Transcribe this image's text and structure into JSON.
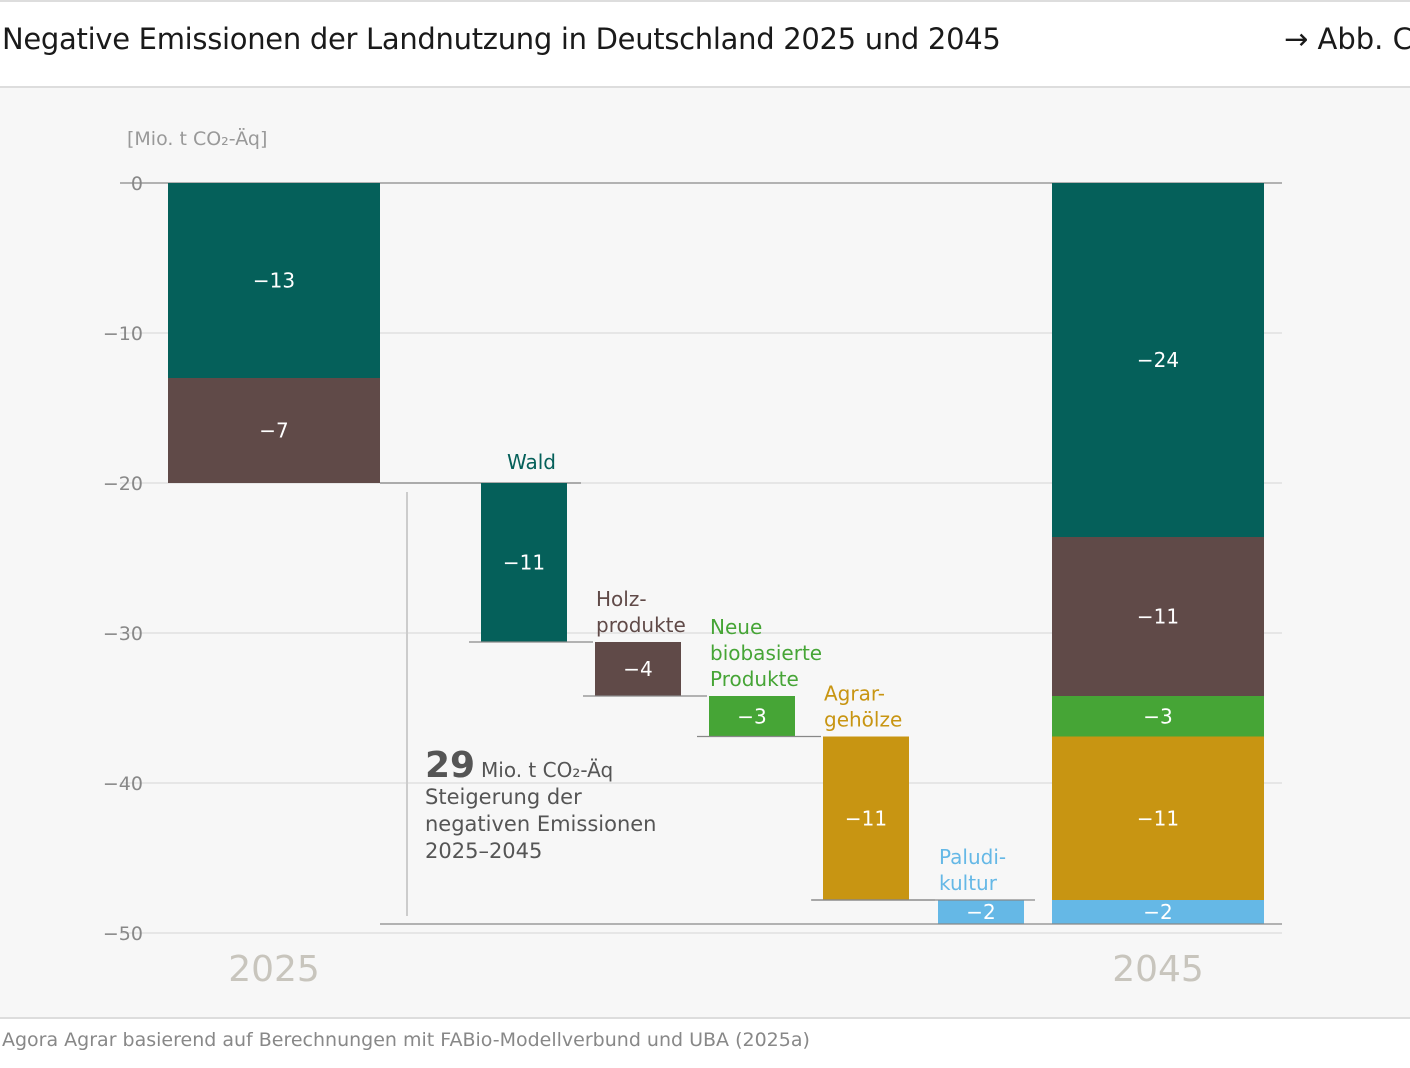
{
  "header": {
    "title": "Negative Emissionen der Landnutzung in Deutschland 2025 und 2045",
    "figure_ref": "→ Abb. C"
  },
  "footer": {
    "source": "Agora Agrar basierend auf Berechnungen mit FABio-Modellverbund und UBA (2025a)"
  },
  "chart_data": {
    "type": "waterfall",
    "ylabel": "[Mio. t CO₂-Äq]",
    "ylim": [
      -50,
      0
    ],
    "yticks": [
      0,
      -10,
      -20,
      -30,
      -40,
      -50
    ],
    "ytick_labels": [
      "0",
      "−10",
      "−20",
      "−30",
      "−40",
      "−50"
    ],
    "grid": true,
    "colors": {
      "Wald": "#05605a",
      "Holzprodukte": "#604a48",
      "Neue biobasierte Produkte": "#46a536",
      "Agrargehölze": "#c89512",
      "Paludikultur": "#65b8e6"
    },
    "totals": [
      {
        "category": "2025",
        "segments": [
          {
            "key": "Wald",
            "value": -13,
            "label": "−13"
          },
          {
            "key": "Holzprodukte",
            "value": -7,
            "label": "−7"
          }
        ]
      },
      {
        "category": "2045",
        "segments": [
          {
            "key": "Wald",
            "value": -23.6,
            "label": "−24"
          },
          {
            "key": "Holzprodukte",
            "value": -10.6,
            "label": "−11"
          },
          {
            "key": "Neue biobasierte Produkte",
            "value": -2.7,
            "label": "−3"
          },
          {
            "key": "Agrargehölze",
            "value": -10.9,
            "label": "−11"
          },
          {
            "key": "Paludikultur",
            "value": -1.6,
            "label": "−2"
          }
        ]
      }
    ],
    "steps": [
      {
        "key": "Wald",
        "name": "Wald",
        "value": -10.6,
        "label": "−11"
      },
      {
        "key": "Holzprodukte",
        "name": "Holz-\nprodukte",
        "value": -3.6,
        "label": "−4"
      },
      {
        "key": "Neue biobasierte Produkte",
        "name": "Neue\nbiobasierte\nProdukte",
        "value": -2.7,
        "label": "−3"
      },
      {
        "key": "Agrargehölze",
        "name": "Agrar-\ngehölze",
        "value": -10.9,
        "label": "−11"
      },
      {
        "key": "Paludikultur",
        "name": "Paludi-\nkultur",
        "value": -1.6,
        "label": "−2"
      }
    ],
    "annotation": {
      "number": "29",
      "unit": "Mio. t CO₂-Äq",
      "text": [
        "Steigerung der",
        "negativen Emissionen",
        "2025–2045"
      ]
    }
  }
}
